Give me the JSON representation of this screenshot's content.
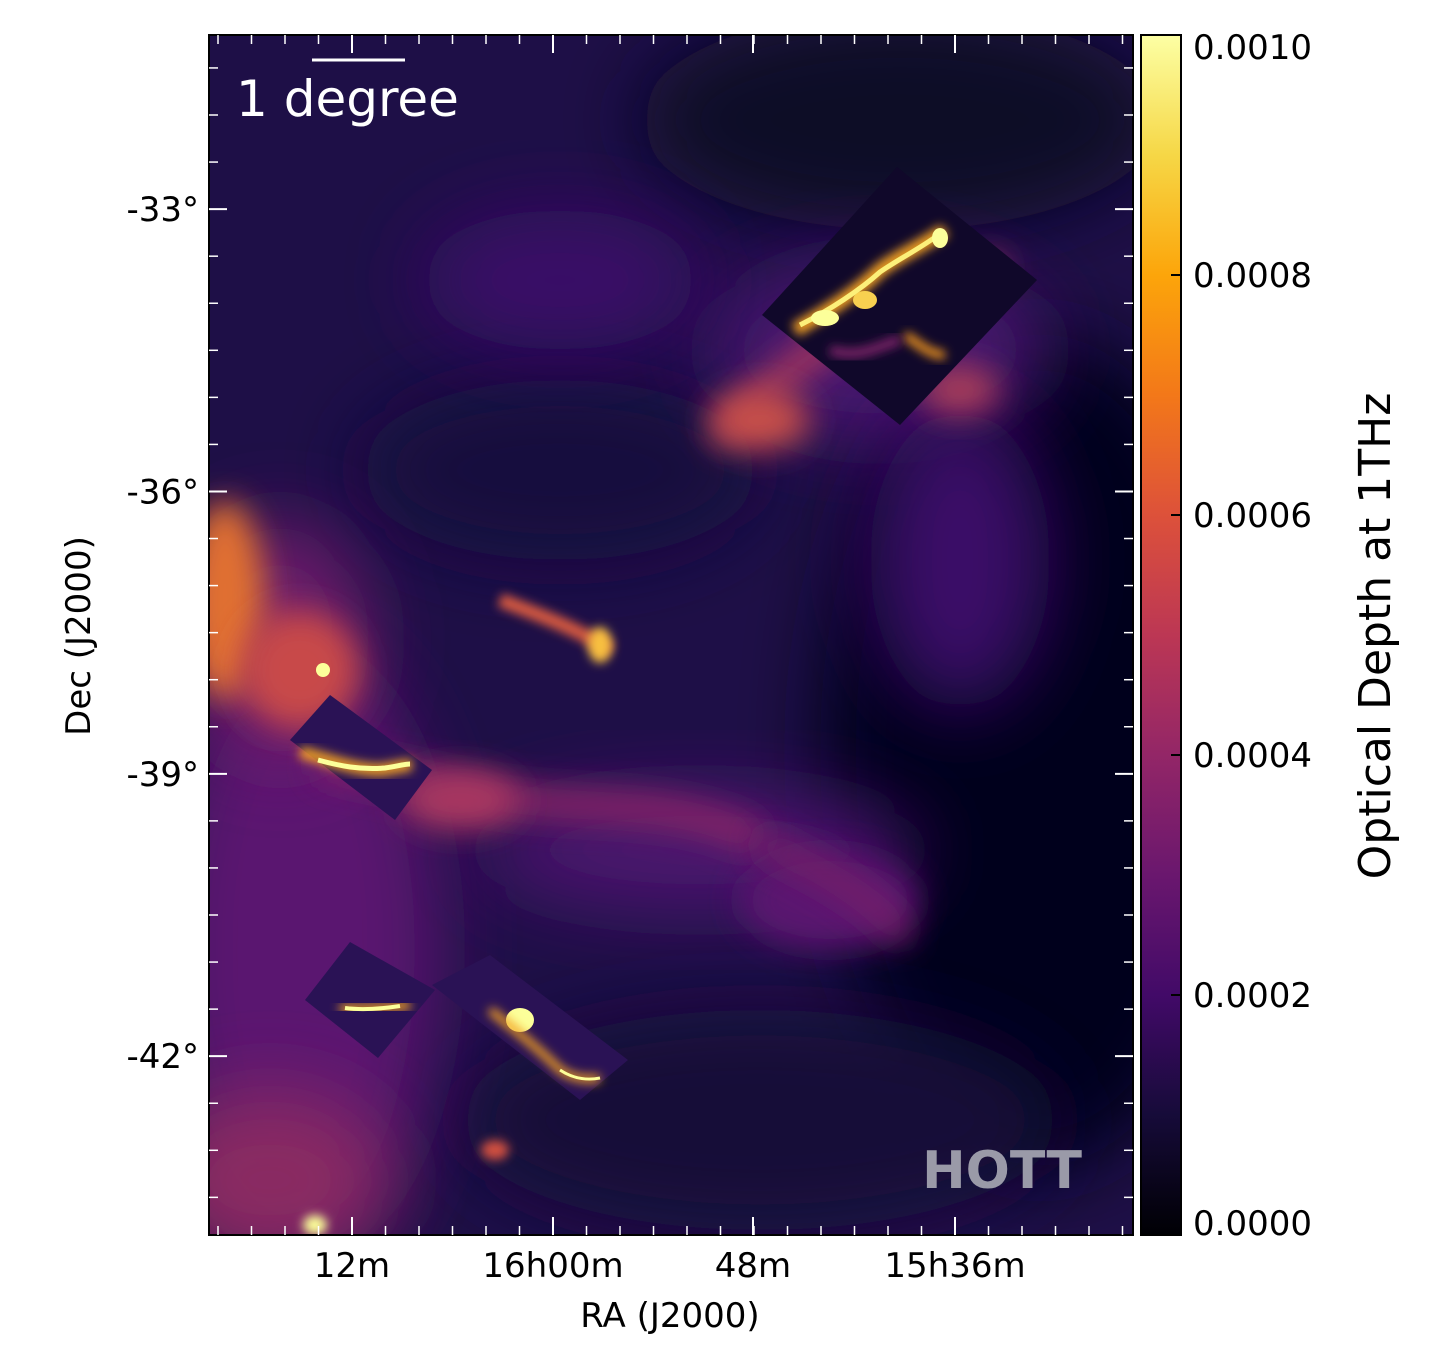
{
  "chart_data": {
    "type": "heatmap",
    "title": "",
    "xlabel": "RA (J2000)",
    "ylabel": "Dec (J2000)",
    "x_ticks": [
      "12m",
      "16h00m",
      "48m",
      "15h36m"
    ],
    "y_ticks": [
      "-33°",
      "-36°",
      "-39°",
      "-42°"
    ],
    "y_tick_values": [
      -33,
      -36,
      -39,
      -42
    ],
    "ylim": [
      -43.9,
      -31.15
    ],
    "colorbar": {
      "label": "Optical Depth at 1THz",
      "range": [
        0.0,
        0.001
      ],
      "ticks": [
        "0.0000",
        "0.0002",
        "0.0004",
        "0.0006",
        "0.0008",
        "0.0010"
      ],
      "tick_values": [
        0.0,
        0.0002,
        0.0004,
        0.0006,
        0.0008,
        0.001
      ],
      "colormap": "inferno"
    },
    "scalebar_label": "1 degree",
    "watermark": "HOTT",
    "grid": false
  }
}
